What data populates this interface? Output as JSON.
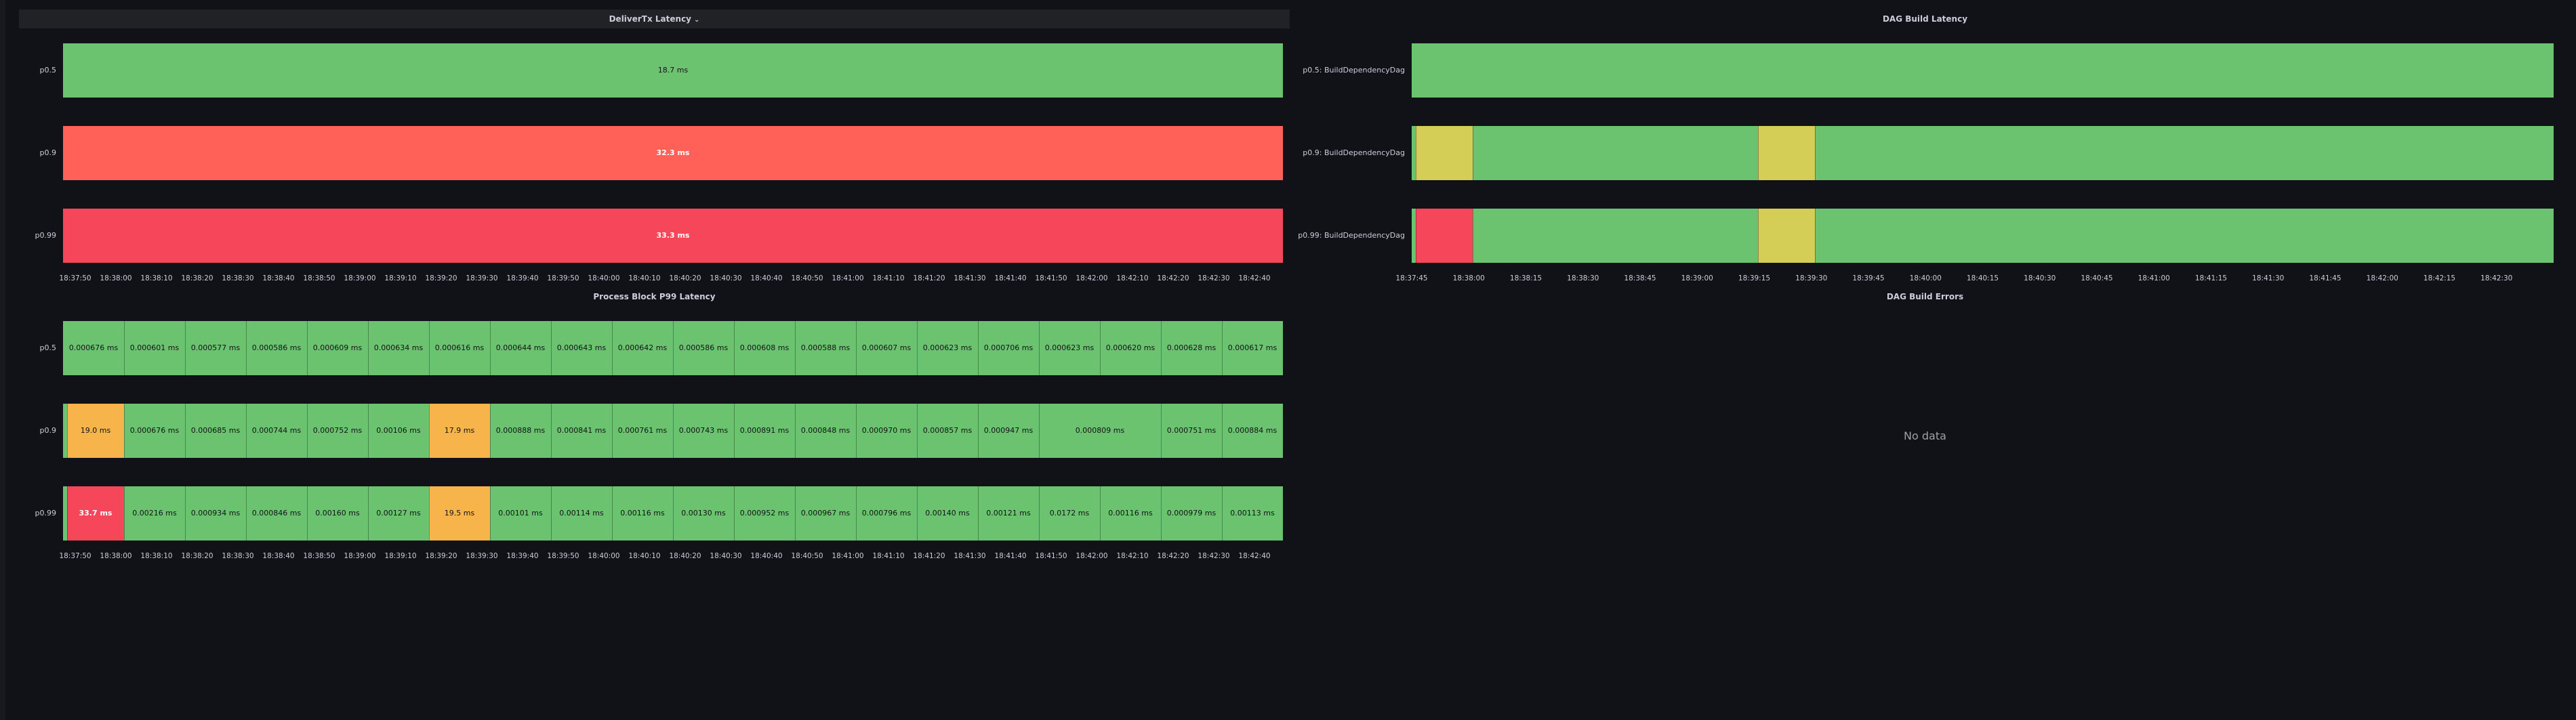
{
  "colors": {
    "background": "#111217",
    "title_highlight": "#202226",
    "green": "#6cc36f",
    "red": "#ff6159",
    "pink_red": "#f6475a",
    "yellow": "#d4cd56",
    "orange": "#f6b44a",
    "text": "#ccccdc",
    "dark_text": "#111217",
    "light_text": "#ffffff",
    "muted": "#9fa1a9"
  },
  "panels": [
    {
      "id": "delivertx",
      "title": "DeliverTx Latency",
      "title_highlighted": true,
      "menu_icon": "chevron-down-icon",
      "time_range": [
        "18:37:47",
        "18:42:47"
      ],
      "rows": [
        {
          "label": "p0.5",
          "segments": [
            {
              "start": "18:37:47",
              "end": "18:42:47",
              "color": "#6cc36f",
              "value": "18.7 ms",
              "text": "dark"
            }
          ]
        },
        {
          "label": "p0.9",
          "segments": [
            {
              "start": "18:37:47",
              "end": "18:42:47",
              "color": "#ff6159",
              "value": "32.3 ms",
              "text": "light"
            }
          ]
        },
        {
          "label": "p0.99",
          "segments": [
            {
              "start": "18:37:47",
              "end": "18:42:47",
              "color": "#f6475a",
              "value": "33.3 ms",
              "text": "light"
            }
          ]
        }
      ],
      "ticks": [
        "18:37:50",
        "18:38:00",
        "18:38:10",
        "18:38:20",
        "18:38:30",
        "18:38:40",
        "18:38:50",
        "18:39:00",
        "18:39:10",
        "18:39:20",
        "18:39:30",
        "18:39:40",
        "18:39:50",
        "18:40:00",
        "18:40:10",
        "18:40:20",
        "18:40:30",
        "18:40:40",
        "18:40:50",
        "18:41:00",
        "18:41:10",
        "18:41:20",
        "18:41:30",
        "18:41:40",
        "18:41:50",
        "18:42:00",
        "18:42:10",
        "18:42:20",
        "18:42:30",
        "18:42:40"
      ]
    },
    {
      "id": "dagbuild",
      "title": "DAG Build Latency",
      "title_highlighted": false,
      "time_range": [
        "18:37:45",
        "18:42:45"
      ],
      "rows": [
        {
          "label": "p0.5: BuildDependencyDag",
          "segments": [
            {
              "start": "18:37:45",
              "end": "18:42:45",
              "color": "#6cc36f"
            }
          ]
        },
        {
          "label": "p0.9: BuildDependencyDag",
          "segments": [
            {
              "start": "18:37:45",
              "end": "18:37:46",
              "color": "#6cc36f"
            },
            {
              "start": "18:37:46",
              "end": "18:38:01",
              "color": "#d4cd56"
            },
            {
              "start": "18:38:01",
              "end": "18:39:16",
              "color": "#6cc36f"
            },
            {
              "start": "18:39:16",
              "end": "18:39:31",
              "color": "#d4cd56"
            },
            {
              "start": "18:39:31",
              "end": "18:42:45",
              "color": "#6cc36f"
            }
          ]
        },
        {
          "label": "p0.99: BuildDependencyDag",
          "segments": [
            {
              "start": "18:37:45",
              "end": "18:37:46",
              "color": "#6cc36f"
            },
            {
              "start": "18:37:46",
              "end": "18:38:01",
              "color": "#f6475a"
            },
            {
              "start": "18:38:01",
              "end": "18:39:16",
              "color": "#6cc36f"
            },
            {
              "start": "18:39:16",
              "end": "18:39:31",
              "color": "#d4cd56"
            },
            {
              "start": "18:39:31",
              "end": "18:42:45",
              "color": "#6cc36f"
            }
          ]
        }
      ],
      "ticks": [
        "18:37:45",
        "18:38:00",
        "18:38:15",
        "18:38:30",
        "18:38:45",
        "18:39:00",
        "18:39:15",
        "18:39:30",
        "18:39:45",
        "18:40:00",
        "18:40:15",
        "18:40:30",
        "18:40:45",
        "18:41:00",
        "18:41:15",
        "18:41:30",
        "18:41:45",
        "18:42:00",
        "18:42:15",
        "18:42:30"
      ]
    },
    {
      "id": "processblock",
      "title": "Process Block P99 Latency",
      "title_highlighted": false,
      "time_range": [
        "18:37:47",
        "18:42:47"
      ],
      "rows": [
        {
          "label": "p0.5",
          "segments": [
            {
              "start": "18:37:47",
              "end": "18:38:02",
              "color": "#6cc36f",
              "value": "0.000676 ms",
              "text": "dark"
            },
            {
              "start": "18:38:02",
              "end": "18:38:17",
              "color": "#6cc36f",
              "value": "0.000601 ms",
              "text": "dark"
            },
            {
              "start": "18:38:17",
              "end": "18:38:32",
              "color": "#6cc36f",
              "value": "0.000577 ms",
              "text": "dark"
            },
            {
              "start": "18:38:32",
              "end": "18:38:47",
              "color": "#6cc36f",
              "value": "0.000586 ms",
              "text": "dark"
            },
            {
              "start": "18:38:47",
              "end": "18:39:02",
              "color": "#6cc36f",
              "value": "0.000609 ms",
              "text": "dark"
            },
            {
              "start": "18:39:02",
              "end": "18:39:17",
              "color": "#6cc36f",
              "value": "0.000634 ms",
              "text": "dark"
            },
            {
              "start": "18:39:17",
              "end": "18:39:32",
              "color": "#6cc36f",
              "value": "0.000616 ms",
              "text": "dark"
            },
            {
              "start": "18:39:32",
              "end": "18:39:47",
              "color": "#6cc36f",
              "value": "0.000644 ms",
              "text": "dark"
            },
            {
              "start": "18:39:47",
              "end": "18:40:02",
              "color": "#6cc36f",
              "value": "0.000643 ms",
              "text": "dark"
            },
            {
              "start": "18:40:02",
              "end": "18:40:17",
              "color": "#6cc36f",
              "value": "0.000642 ms",
              "text": "dark"
            },
            {
              "start": "18:40:17",
              "end": "18:40:32",
              "color": "#6cc36f",
              "value": "0.000586 ms",
              "text": "dark"
            },
            {
              "start": "18:40:32",
              "end": "18:40:47",
              "color": "#6cc36f",
              "value": "0.000608 ms",
              "text": "dark"
            },
            {
              "start": "18:40:47",
              "end": "18:41:02",
              "color": "#6cc36f",
              "value": "0.000588 ms",
              "text": "dark"
            },
            {
              "start": "18:41:02",
              "end": "18:41:17",
              "color": "#6cc36f",
              "value": "0.000607 ms",
              "text": "dark"
            },
            {
              "start": "18:41:17",
              "end": "18:41:32",
              "color": "#6cc36f",
              "value": "0.000623 ms",
              "text": "dark"
            },
            {
              "start": "18:41:32",
              "end": "18:41:47",
              "color": "#6cc36f",
              "value": "0.000706 ms",
              "text": "dark"
            },
            {
              "start": "18:41:47",
              "end": "18:42:02",
              "color": "#6cc36f",
              "value": "0.000623 ms",
              "text": "dark"
            },
            {
              "start": "18:42:02",
              "end": "18:42:17",
              "color": "#6cc36f",
              "value": "0.000620 ms",
              "text": "dark"
            },
            {
              "start": "18:42:17",
              "end": "18:42:32",
              "color": "#6cc36f",
              "value": "0.000628 ms",
              "text": "dark"
            },
            {
              "start": "18:42:32",
              "end": "18:42:47",
              "color": "#6cc36f",
              "value": "0.000617 ms",
              "text": "dark"
            }
          ]
        },
        {
          "label": "p0.9",
          "segments": [
            {
              "start": "18:37:47",
              "end": "18:37:48",
              "color": "#6cc36f",
              "value": "",
              "text": "dark"
            },
            {
              "start": "18:37:48",
              "end": "18:38:02",
              "color": "#f6b44a",
              "value": "19.0 ms",
              "text": "dark"
            },
            {
              "start": "18:38:02",
              "end": "18:38:17",
              "color": "#6cc36f",
              "value": "0.000676 ms",
              "text": "dark"
            },
            {
              "start": "18:38:17",
              "end": "18:38:32",
              "color": "#6cc36f",
              "value": "0.000685 ms",
              "text": "dark"
            },
            {
              "start": "18:38:32",
              "end": "18:38:47",
              "color": "#6cc36f",
              "value": "0.000744 ms",
              "text": "dark"
            },
            {
              "start": "18:38:47",
              "end": "18:39:02",
              "color": "#6cc36f",
              "value": "0.000752 ms",
              "text": "dark"
            },
            {
              "start": "18:39:02",
              "end": "18:39:17",
              "color": "#6cc36f",
              "value": "0.00106 ms",
              "text": "dark"
            },
            {
              "start": "18:39:17",
              "end": "18:39:32",
              "color": "#f6b44a",
              "value": "17.9 ms",
              "text": "dark"
            },
            {
              "start": "18:39:32",
              "end": "18:39:47",
              "color": "#6cc36f",
              "value": "0.000888 ms",
              "text": "dark"
            },
            {
              "start": "18:39:47",
              "end": "18:40:02",
              "color": "#6cc36f",
              "value": "0.000841 ms",
              "text": "dark"
            },
            {
              "start": "18:40:02",
              "end": "18:40:17",
              "color": "#6cc36f",
              "value": "0.000761 ms",
              "text": "dark"
            },
            {
              "start": "18:40:17",
              "end": "18:40:32",
              "color": "#6cc36f",
              "value": "0.000743 ms",
              "text": "dark"
            },
            {
              "start": "18:40:32",
              "end": "18:40:47",
              "color": "#6cc36f",
              "value": "0.000891 ms",
              "text": "dark"
            },
            {
              "start": "18:40:47",
              "end": "18:41:02",
              "color": "#6cc36f",
              "value": "0.000848 ms",
              "text": "dark"
            },
            {
              "start": "18:41:02",
              "end": "18:41:17",
              "color": "#6cc36f",
              "value": "0.000970 ms",
              "text": "dark"
            },
            {
              "start": "18:41:17",
              "end": "18:41:32",
              "color": "#6cc36f",
              "value": "0.000857 ms",
              "text": "dark"
            },
            {
              "start": "18:41:32",
              "end": "18:41:47",
              "color": "#6cc36f",
              "value": "0.000947 ms",
              "text": "dark"
            },
            {
              "start": "18:41:47",
              "end": "18:42:17",
              "color": "#6cc36f",
              "value": "0.000809 ms",
              "text": "dark"
            },
            {
              "start": "18:42:17",
              "end": "18:42:32",
              "color": "#6cc36f",
              "value": "0.000751 ms",
              "text": "dark"
            },
            {
              "start": "18:42:32",
              "end": "18:42:47",
              "color": "#6cc36f",
              "value": "0.000884 ms",
              "text": "dark"
            }
          ]
        },
        {
          "label": "p0.99",
          "segments": [
            {
              "start": "18:37:47",
              "end": "18:37:48",
              "color": "#6cc36f",
              "value": "",
              "text": "dark"
            },
            {
              "start": "18:37:48",
              "end": "18:38:02",
              "color": "#f6475a",
              "value": "33.7 ms",
              "text": "light"
            },
            {
              "start": "18:38:02",
              "end": "18:38:17",
              "color": "#6cc36f",
              "value": "0.00216 ms",
              "text": "dark"
            },
            {
              "start": "18:38:17",
              "end": "18:38:32",
              "color": "#6cc36f",
              "value": "0.000934 ms",
              "text": "dark"
            },
            {
              "start": "18:38:32",
              "end": "18:38:47",
              "color": "#6cc36f",
              "value": "0.000846 ms",
              "text": "dark"
            },
            {
              "start": "18:38:47",
              "end": "18:39:02",
              "color": "#6cc36f",
              "value": "0.00160 ms",
              "text": "dark"
            },
            {
              "start": "18:39:02",
              "end": "18:39:17",
              "color": "#6cc36f",
              "value": "0.00127 ms",
              "text": "dark"
            },
            {
              "start": "18:39:17",
              "end": "18:39:32",
              "color": "#f6b44a",
              "value": "19.5 ms",
              "text": "dark"
            },
            {
              "start": "18:39:32",
              "end": "18:39:47",
              "color": "#6cc36f",
              "value": "0.00101 ms",
              "text": "dark"
            },
            {
              "start": "18:39:47",
              "end": "18:40:02",
              "color": "#6cc36f",
              "value": "0.00114 ms",
              "text": "dark"
            },
            {
              "start": "18:40:02",
              "end": "18:40:17",
              "color": "#6cc36f",
              "value": "0.00116 ms",
              "text": "dark"
            },
            {
              "start": "18:40:17",
              "end": "18:40:32",
              "color": "#6cc36f",
              "value": "0.00130 ms",
              "text": "dark"
            },
            {
              "start": "18:40:32",
              "end": "18:40:47",
              "color": "#6cc36f",
              "value": "0.000952 ms",
              "text": "dark"
            },
            {
              "start": "18:40:47",
              "end": "18:41:02",
              "color": "#6cc36f",
              "value": "0.000967 ms",
              "text": "dark"
            },
            {
              "start": "18:41:02",
              "end": "18:41:17",
              "color": "#6cc36f",
              "value": "0.000796 ms",
              "text": "dark"
            },
            {
              "start": "18:41:17",
              "end": "18:41:32",
              "color": "#6cc36f",
              "value": "0.00140 ms",
              "text": "dark"
            },
            {
              "start": "18:41:32",
              "end": "18:41:47",
              "color": "#6cc36f",
              "value": "0.00121 ms",
              "text": "dark"
            },
            {
              "start": "18:41:47",
              "end": "18:42:02",
              "color": "#6cc36f",
              "value": "0.0172 ms",
              "text": "dark"
            },
            {
              "start": "18:42:02",
              "end": "18:42:17",
              "color": "#6cc36f",
              "value": "0.00116 ms",
              "text": "dark"
            },
            {
              "start": "18:42:17",
              "end": "18:42:32",
              "color": "#6cc36f",
              "value": "0.000979 ms",
              "text": "dark"
            },
            {
              "start": "18:42:32",
              "end": "18:42:47",
              "color": "#6cc36f",
              "value": "0.00113 ms",
              "text": "dark"
            }
          ]
        }
      ],
      "ticks": [
        "18:37:50",
        "18:38:00",
        "18:38:10",
        "18:38:20",
        "18:38:30",
        "18:38:40",
        "18:38:50",
        "18:39:00",
        "18:39:10",
        "18:39:20",
        "18:39:30",
        "18:39:40",
        "18:39:50",
        "18:40:00",
        "18:40:10",
        "18:40:20",
        "18:40:30",
        "18:40:40",
        "18:40:50",
        "18:41:00",
        "18:41:10",
        "18:41:20",
        "18:41:30",
        "18:41:40",
        "18:41:50",
        "18:42:00",
        "18:42:10",
        "18:42:20",
        "18:42:30",
        "18:42:40"
      ]
    },
    {
      "id": "dagerrors",
      "title": "DAG Build Errors",
      "title_highlighted": false,
      "no_data_text": "No data"
    }
  ]
}
